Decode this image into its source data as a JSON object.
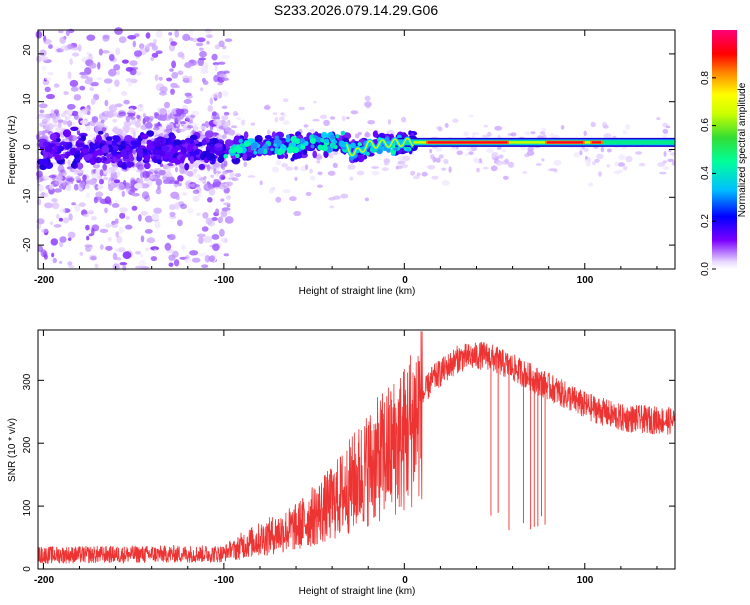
{
  "title": "S233.2026.079.14.29.G06",
  "chart_data": [
    {
      "type": "heatmap",
      "name": "spectrogram",
      "xlabel": "Height of straight line (km)",
      "ylabel": "Frequency (Hz)",
      "xlim": [
        -203,
        150
      ],
      "ylim": [
        -25,
        25
      ],
      "xticks": [
        "-200",
        "-100",
        "0",
        "100"
      ],
      "yticks": [
        "20",
        "10",
        "0",
        "-10",
        "-20"
      ],
      "colorbar": {
        "label": "Normalized spectral amplitude",
        "range": [
          0,
          1
        ],
        "ticks": [
          "0.0",
          "0.2",
          "0.4",
          "0.6",
          "0.8"
        ],
        "colors": [
          "#ffffff",
          "#6600ff",
          "#0000ff",
          "#00bfff",
          "#00ff7f",
          "#32cd32",
          "#ffff00",
          "#ff7f00",
          "#ff0000",
          "#ff007f"
        ]
      },
      "ridge": [
        {
          "x": -100,
          "f": 0
        },
        {
          "x": -60,
          "f": 1
        },
        {
          "x": -35,
          "f": 2
        },
        {
          "x": -28,
          "f": -1
        },
        {
          "x": -20,
          "f": 1
        },
        {
          "x": 0,
          "f": 1.5
        },
        {
          "x": 60,
          "f": 1.5
        },
        {
          "x": 100,
          "f": 1.5
        },
        {
          "x": 150,
          "f": 1.5
        }
      ]
    },
    {
      "type": "line",
      "name": "snr",
      "xlabel": "Height of straight line (km)",
      "ylabel": "SNR (10 * v/v)",
      "xlim": [
        -203,
        150
      ],
      "ylim": [
        0,
        380
      ],
      "xticks": [
        "-200",
        "-100",
        "0",
        "100"
      ],
      "yticks": [
        "300",
        "200",
        "100",
        "0"
      ],
      "color": "#ee3333",
      "envelope": [
        {
          "x": -203,
          "y": 18
        },
        {
          "x": -100,
          "y": 20
        },
        {
          "x": -90,
          "y": 40
        },
        {
          "x": -60,
          "y": 70
        },
        {
          "x": -40,
          "y": 110
        },
        {
          "x": -20,
          "y": 170
        },
        {
          "x": 0,
          "y": 220
        },
        {
          "x": 15,
          "y": 300
        },
        {
          "x": 30,
          "y": 335
        },
        {
          "x": 45,
          "y": 340
        },
        {
          "x": 60,
          "y": 320
        },
        {
          "x": 80,
          "y": 290
        },
        {
          "x": 100,
          "y": 260
        },
        {
          "x": 120,
          "y": 240
        },
        {
          "x": 150,
          "y": 235
        }
      ],
      "dropouts": [
        48,
        52,
        58,
        66,
        70,
        72,
        74,
        76,
        78
      ]
    }
  ]
}
